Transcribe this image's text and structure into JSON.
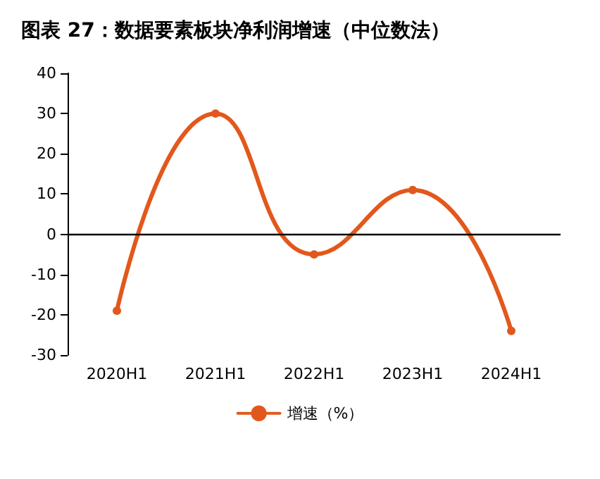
{
  "chart_data": {
    "type": "line",
    "title": "图表 27：数据要素板块净利润增速（中位数法）",
    "categories": [
      "2020H1",
      "2021H1",
      "2022H1",
      "2023H1",
      "2024H1"
    ],
    "series": [
      {
        "name": "增速（%）",
        "color": "#e2581c",
        "values": [
          -19,
          30,
          -5,
          11,
          -24
        ]
      }
    ],
    "ylim": [
      -30,
      40
    ],
    "yticks": [
      -30,
      -20,
      -10,
      0,
      10,
      20,
      30,
      40
    ],
    "ref_lines": [
      {
        "axis": "y",
        "value": 0,
        "color": "#000000",
        "line_style": "solid"
      }
    ],
    "grid": false,
    "legend": "bottom",
    "marker": "circle",
    "line_style": "solid"
  }
}
